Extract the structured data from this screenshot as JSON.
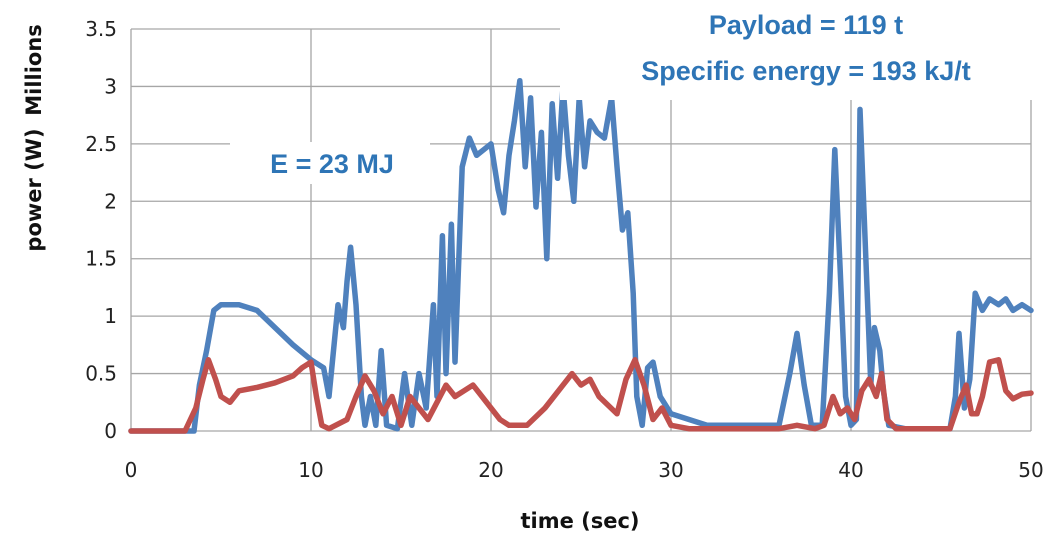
{
  "chart_data": {
    "type": "line",
    "xlabel": "time (sec)",
    "ylabel": "power (W)",
    "y_unit_label": "Millions",
    "xlim": [
      0,
      50
    ],
    "ylim": [
      0,
      3.5
    ],
    "x_ticks": [
      "0",
      "10",
      "20",
      "30",
      "40",
      "50"
    ],
    "y_ticks": [
      "0",
      "0.5",
      "1",
      "1.5",
      "2",
      "2.5",
      "3",
      "3.5"
    ],
    "grid": true,
    "legend": "none",
    "annotations": {
      "energy": "E = 23 MJ",
      "payload": "Payload = 119 t",
      "specific_energy": "Specific energy = 193 kJ/t"
    },
    "series": [
      {
        "color": "#4F81BD",
        "points": [
          [
            0,
            0
          ],
          [
            2,
            0
          ],
          [
            3.5,
            0
          ],
          [
            3.8,
            0.4
          ],
          [
            4.2,
            0.7
          ],
          [
            4.6,
            1.05
          ],
          [
            5,
            1.1
          ],
          [
            6,
            1.1
          ],
          [
            7,
            1.05
          ],
          [
            8,
            0.9
          ],
          [
            9,
            0.75
          ],
          [
            10,
            0.62
          ],
          [
            10.7,
            0.55
          ],
          [
            11,
            0.3
          ],
          [
            11.5,
            1.1
          ],
          [
            11.8,
            0.9
          ],
          [
            12,
            1.3
          ],
          [
            12.2,
            1.6
          ],
          [
            12.5,
            1.1
          ],
          [
            12.8,
            0.3
          ],
          [
            13,
            0.05
          ],
          [
            13.3,
            0.3
          ],
          [
            13.6,
            0.05
          ],
          [
            13.9,
            0.7
          ],
          [
            14.2,
            0.05
          ],
          [
            14.8,
            0.02
          ],
          [
            15.2,
            0.5
          ],
          [
            15.6,
            0.05
          ],
          [
            16,
            0.5
          ],
          [
            16.4,
            0.2
          ],
          [
            16.8,
            1.1
          ],
          [
            17,
            0.3
          ],
          [
            17.3,
            1.7
          ],
          [
            17.5,
            0.5
          ],
          [
            17.8,
            1.8
          ],
          [
            18,
            0.6
          ],
          [
            18.4,
            2.3
          ],
          [
            18.8,
            2.55
          ],
          [
            19.2,
            2.4
          ],
          [
            19.6,
            2.45
          ],
          [
            20,
            2.5
          ],
          [
            20.4,
            2.1
          ],
          [
            20.7,
            1.9
          ],
          [
            21,
            2.4
          ],
          [
            21.3,
            2.7
          ],
          [
            21.6,
            3.05
          ],
          [
            21.9,
            2.3
          ],
          [
            22.2,
            2.9
          ],
          [
            22.5,
            1.95
          ],
          [
            22.8,
            2.6
          ],
          [
            23.1,
            1.5
          ],
          [
            23.4,
            2.85
          ],
          [
            23.7,
            2.2
          ],
          [
            24,
            3
          ],
          [
            24.3,
            2.4
          ],
          [
            24.6,
            2.0
          ],
          [
            24.9,
            2.9
          ],
          [
            25.2,
            2.3
          ],
          [
            25.5,
            2.7
          ],
          [
            25.9,
            2.6
          ],
          [
            26.3,
            2.55
          ],
          [
            26.7,
            2.9
          ],
          [
            27,
            2.3
          ],
          [
            27.3,
            1.75
          ],
          [
            27.6,
            1.9
          ],
          [
            27.9,
            1.2
          ],
          [
            28.1,
            0.3
          ],
          [
            28.4,
            0.05
          ],
          [
            28.7,
            0.55
          ],
          [
            29,
            0.6
          ],
          [
            29.4,
            0.3
          ],
          [
            30,
            0.15
          ],
          [
            31,
            0.1
          ],
          [
            32,
            0.05
          ],
          [
            35,
            0.05
          ],
          [
            36,
            0.05
          ],
          [
            36.6,
            0.5
          ],
          [
            37,
            0.85
          ],
          [
            37.4,
            0.4
          ],
          [
            37.8,
            0.05
          ],
          [
            38.4,
            0.05
          ],
          [
            38.8,
            1.2
          ],
          [
            39.1,
            2.45
          ],
          [
            39.4,
            1.4
          ],
          [
            39.7,
            0.3
          ],
          [
            40,
            0.05
          ],
          [
            40.3,
            0.1
          ],
          [
            40.5,
            2.8
          ],
          [
            40.8,
            1.6
          ],
          [
            41.1,
            0.4
          ],
          [
            41.3,
            0.9
          ],
          [
            41.6,
            0.7
          ],
          [
            41.8,
            0.35
          ],
          [
            42.1,
            0.05
          ],
          [
            43,
            0.02
          ],
          [
            45.5,
            0.02
          ],
          [
            45.8,
            0.3
          ],
          [
            46,
            0.85
          ],
          [
            46.3,
            0.2
          ],
          [
            46.6,
            0.45
          ],
          [
            46.9,
            1.2
          ],
          [
            47.3,
            1.05
          ],
          [
            47.7,
            1.15
          ],
          [
            48.2,
            1.1
          ],
          [
            48.6,
            1.15
          ],
          [
            49,
            1.05
          ],
          [
            49.5,
            1.1
          ],
          [
            50,
            1.05
          ]
        ]
      },
      {
        "color": "#C0504D",
        "points": [
          [
            0,
            0
          ],
          [
            3,
            0
          ],
          [
            3.6,
            0.2
          ],
          [
            4,
            0.45
          ],
          [
            4.3,
            0.62
          ],
          [
            4.7,
            0.45
          ],
          [
            5,
            0.3
          ],
          [
            5.5,
            0.25
          ],
          [
            6,
            0.35
          ],
          [
            7,
            0.38
          ],
          [
            8,
            0.42
          ],
          [
            9,
            0.48
          ],
          [
            9.5,
            0.55
          ],
          [
            10,
            0.6
          ],
          [
            10.3,
            0.3
          ],
          [
            10.6,
            0.05
          ],
          [
            11,
            0.02
          ],
          [
            12,
            0.1
          ],
          [
            12.5,
            0.3
          ],
          [
            13,
            0.48
          ],
          [
            13.5,
            0.35
          ],
          [
            14,
            0.15
          ],
          [
            14.5,
            0.3
          ],
          [
            15,
            0.05
          ],
          [
            15.5,
            0.3
          ],
          [
            16,
            0.2
          ],
          [
            16.5,
            0.1
          ],
          [
            17,
            0.25
          ],
          [
            17.5,
            0.4
          ],
          [
            18,
            0.3
          ],
          [
            18.5,
            0.35
          ],
          [
            19,
            0.4
          ],
          [
            19.5,
            0.3
          ],
          [
            20,
            0.2
          ],
          [
            20.5,
            0.1
          ],
          [
            21,
            0.05
          ],
          [
            22,
            0.05
          ],
          [
            23,
            0.2
          ],
          [
            24,
            0.4
          ],
          [
            24.5,
            0.5
          ],
          [
            25,
            0.4
          ],
          [
            25.5,
            0.45
          ],
          [
            26,
            0.3
          ],
          [
            27,
            0.15
          ],
          [
            27.5,
            0.45
          ],
          [
            28,
            0.62
          ],
          [
            28.5,
            0.4
          ],
          [
            29,
            0.1
          ],
          [
            29.5,
            0.2
          ],
          [
            30,
            0.05
          ],
          [
            31,
            0.02
          ],
          [
            36,
            0.02
          ],
          [
            37,
            0.05
          ],
          [
            38,
            0.02
          ],
          [
            38.5,
            0.05
          ],
          [
            39,
            0.3
          ],
          [
            39.4,
            0.15
          ],
          [
            39.8,
            0.2
          ],
          [
            40.2,
            0.1
          ],
          [
            40.6,
            0.35
          ],
          [
            41,
            0.45
          ],
          [
            41.4,
            0.3
          ],
          [
            41.7,
            0.5
          ],
          [
            42,
            0.1
          ],
          [
            42.5,
            0.02
          ],
          [
            45.5,
            0.02
          ],
          [
            46,
            0.25
          ],
          [
            46.4,
            0.4
          ],
          [
            46.7,
            0.15
          ],
          [
            47,
            0.15
          ],
          [
            47.3,
            0.3
          ],
          [
            47.7,
            0.6
          ],
          [
            48.2,
            0.62
          ],
          [
            48.6,
            0.35
          ],
          [
            49,
            0.28
          ],
          [
            49.5,
            0.32
          ],
          [
            50,
            0.33
          ]
        ]
      }
    ]
  }
}
